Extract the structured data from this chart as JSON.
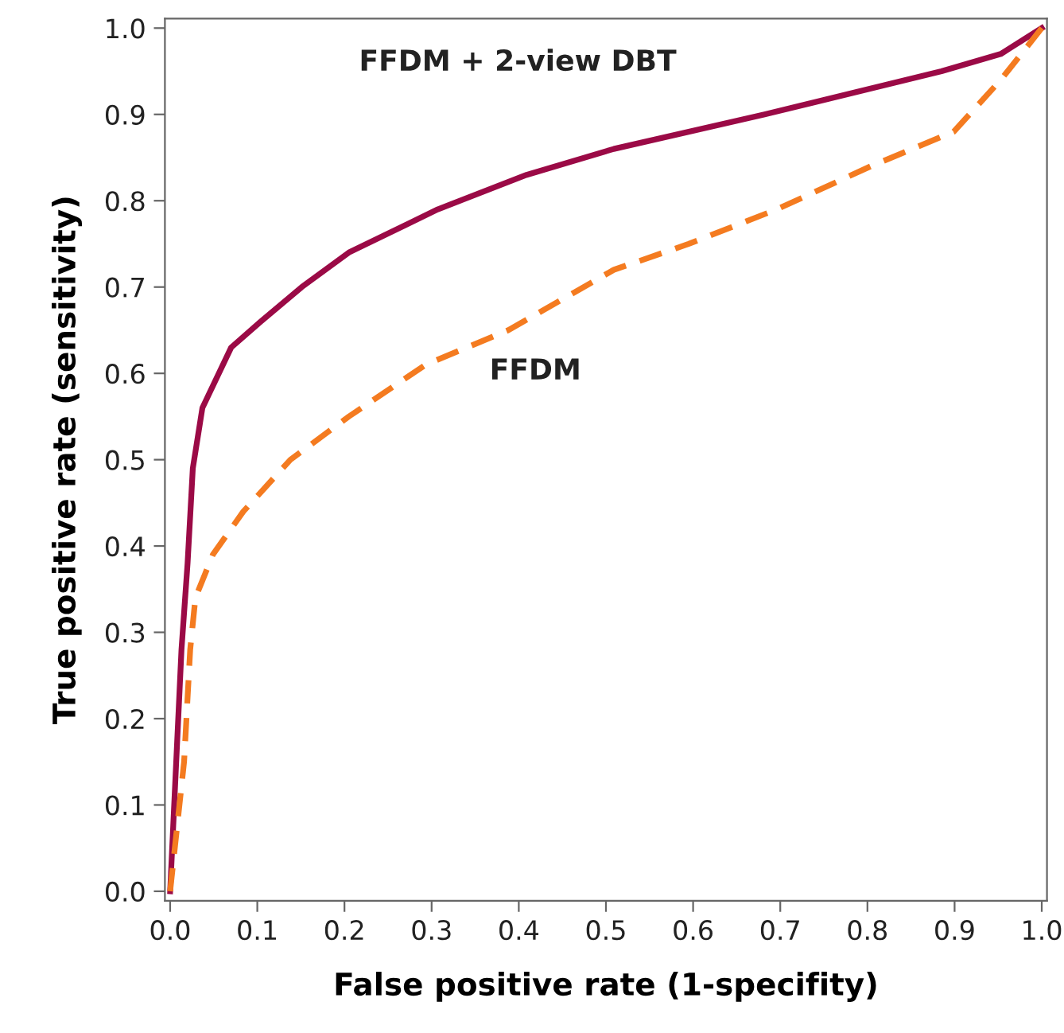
{
  "chart_data": {
    "type": "line",
    "xlabel": "False positive rate (1-specifity)",
    "ylabel": "True positive rate (sensitivity)",
    "xlim": [
      -0.006,
      1.006
    ],
    "ylim": [
      -0.011,
      1.011
    ],
    "xticks": [
      {
        "value": 0,
        "label": "0.0"
      },
      0.1,
      0.2,
      0.3,
      0.4,
      0.5,
      0.6,
      0.7,
      0.8,
      0.9,
      {
        "value": 1,
        "label": "1.0"
      }
    ],
    "yticks": [
      {
        "value": 0,
        "label": "0.0"
      },
      0.1,
      0.2,
      0.3,
      0.4,
      0.5,
      0.6,
      0.7,
      0.8,
      0.9,
      {
        "value": 1,
        "label": "1.0"
      }
    ],
    "grid": false,
    "legend": false,
    "series": [
      {
        "name": "FFDM + 2-view DBT",
        "color": "#9b0a46",
        "line_style": "solid",
        "x": [
          0,
          0.013,
          0.02,
          0.026,
          0.037,
          0.07,
          0.104,
          0.151,
          0.205,
          0.307,
          0.409,
          0.509,
          0.682,
          0.885,
          0.953,
          1.0
        ],
        "values": [
          0,
          0.28,
          0.38,
          0.49,
          0.56,
          0.63,
          0.66,
          0.7,
          0.74,
          0.79,
          0.83,
          0.86,
          0.9,
          0.95,
          0.97,
          1.0
        ]
      },
      {
        "name": "FFDM",
        "color": "#f47b20",
        "line_style": "dashed",
        "x": [
          0,
          0.016,
          0.023,
          0.029,
          0.049,
          0.084,
          0.138,
          0.205,
          0.293,
          0.388,
          0.509,
          0.595,
          0.696,
          0.804,
          0.899,
          0.953,
          1.0
        ],
        "values": [
          0,
          0.15,
          0.28,
          0.34,
          0.39,
          0.44,
          0.5,
          0.55,
          0.61,
          0.65,
          0.72,
          0.75,
          0.79,
          0.84,
          0.88,
          0.94,
          1.0
        ]
      }
    ]
  }
}
